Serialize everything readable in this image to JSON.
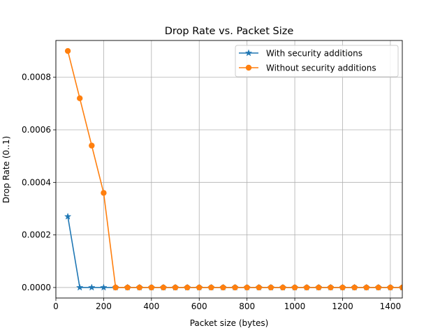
{
  "chart_data": {
    "type": "line",
    "title": "Drop Rate vs. Packet Size",
    "xlabel": "Packet size (bytes)",
    "ylabel": "Drop Rate (0..1)",
    "xlim": [
      0,
      1450
    ],
    "ylim": [
      -4e-05,
      0.00094
    ],
    "xticks": [
      0,
      200,
      400,
      600,
      800,
      1000,
      1200,
      1400
    ],
    "yticks": [
      0.0,
      0.0002,
      0.0004,
      0.0006,
      0.0008
    ],
    "xtick_labels": [
      "0",
      "200",
      "400",
      "600",
      "800",
      "1000",
      "1200",
      "1400"
    ],
    "ytick_labels": [
      "0.0000",
      "0.0002",
      "0.0004",
      "0.0006",
      "0.0008"
    ],
    "grid": true,
    "legend_position": "top-right",
    "x": [
      50,
      100,
      150,
      200,
      250,
      300,
      350,
      400,
      450,
      500,
      550,
      600,
      650,
      700,
      750,
      800,
      850,
      900,
      950,
      1000,
      1050,
      1100,
      1150,
      1200,
      1250,
      1300,
      1350,
      1400,
      1450
    ],
    "series": [
      {
        "name": "With security additions",
        "color": "#1f77b4",
        "marker": "star",
        "values": [
          0.00027,
          0,
          0,
          0,
          0,
          0,
          0,
          0,
          0,
          0,
          0,
          0,
          0,
          0,
          0,
          0,
          0,
          0,
          0,
          0,
          0,
          0,
          0,
          0,
          0,
          0,
          0,
          0,
          0
        ]
      },
      {
        "name": "Without security additions",
        "color": "#ff7f0e",
        "marker": "circle",
        "values": [
          0.0009,
          0.00072,
          0.00054,
          0.00036,
          0,
          0,
          0,
          0,
          0,
          0,
          0,
          0,
          0,
          0,
          0,
          0,
          0,
          0,
          0,
          0,
          0,
          0,
          0,
          0,
          0,
          0,
          0,
          0,
          0
        ]
      }
    ]
  }
}
